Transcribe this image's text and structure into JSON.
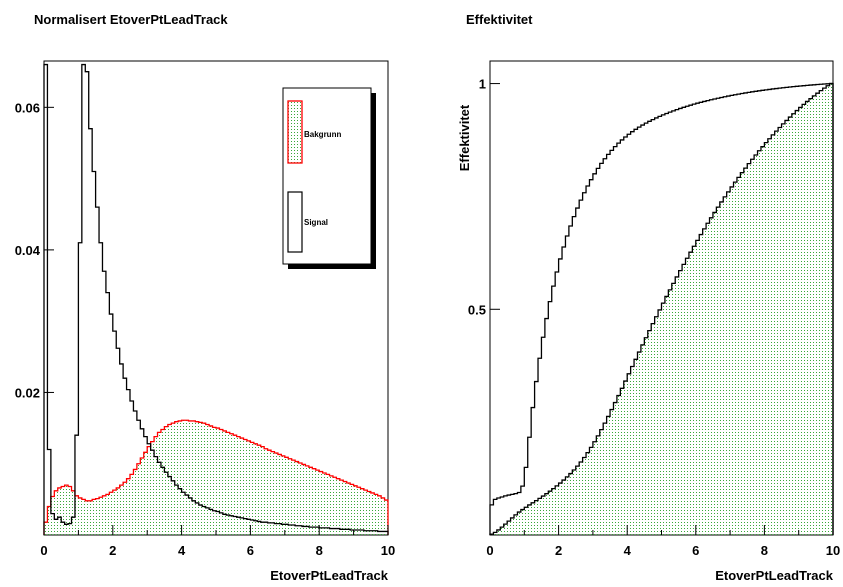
{
  "chart_data": [
    {
      "type": "histogram",
      "title": "Normalisert EtoverPtLeadTrack",
      "xlabel": "EtoverPtLeadTrack",
      "ylabel": "",
      "xlim": [
        0,
        10
      ],
      "ylim": [
        0,
        0.0665
      ],
      "x_ticks": [
        0,
        2,
        4,
        6,
        8,
        10
      ],
      "y_ticks": [
        0.02,
        0.04,
        0.06
      ],
      "y_tick_labels": [
        "0.02",
        "0.04",
        "0.06"
      ],
      "legend_position": "top-right",
      "bin_width": 0.1,
      "series": [
        {
          "name": "Bakgrunn",
          "color": "#ff0000",
          "fill": "green-dots",
          "values": [
            0.0018,
            0.004,
            0.0054,
            0.0062,
            0.0066,
            0.0068,
            0.007,
            0.0068,
            0.0062,
            0.0055,
            0.0052,
            0.005,
            0.0048,
            0.0048,
            0.005,
            0.0051,
            0.0053,
            0.0055,
            0.0057,
            0.006,
            0.0063,
            0.0066,
            0.007,
            0.0074,
            0.0079,
            0.0085,
            0.0092,
            0.01,
            0.0108,
            0.0116,
            0.0124,
            0.0131,
            0.0138,
            0.0144,
            0.0148,
            0.0152,
            0.0155,
            0.0157,
            0.0159,
            0.016,
            0.0161,
            0.0161,
            0.016,
            0.016,
            0.0159,
            0.0158,
            0.0157,
            0.0155,
            0.0153,
            0.0151,
            0.015,
            0.0148,
            0.0146,
            0.0144,
            0.0142,
            0.014,
            0.0138,
            0.0136,
            0.0134,
            0.0132,
            0.013,
            0.0128,
            0.0126,
            0.0124,
            0.0121,
            0.0119,
            0.0117,
            0.0115,
            0.0113,
            0.0111,
            0.0109,
            0.0107,
            0.0105,
            0.0103,
            0.0101,
            0.0099,
            0.0097,
            0.0095,
            0.0093,
            0.0091,
            0.0089,
            0.0087,
            0.0085,
            0.0083,
            0.0081,
            0.0079,
            0.0077,
            0.0075,
            0.0073,
            0.0071,
            0.0069,
            0.0067,
            0.0065,
            0.0063,
            0.0061,
            0.0059,
            0.0057,
            0.0055,
            0.0052,
            0.0049
          ]
        },
        {
          "name": "Signal",
          "color": "#000000",
          "fill": "none",
          "values": [
            0.066,
            0.012,
            0.003,
            0.0022,
            0.0025,
            0.0018,
            0.0015,
            0.0016,
            0.0025,
            0.014,
            0.041,
            0.066,
            0.065,
            0.057,
            0.051,
            0.046,
            0.041,
            0.037,
            0.034,
            0.031,
            0.0286,
            0.0262,
            0.024,
            0.022,
            0.0204,
            0.0188,
            0.0174,
            0.0161,
            0.0149,
            0.0138,
            0.0128,
            0.0119,
            0.011,
            0.0102,
            0.0095,
            0.0088,
            0.0082,
            0.0076,
            0.007,
            0.0065,
            0.006,
            0.0056,
            0.0052,
            0.0048,
            0.0045,
            0.0042,
            0.004,
            0.0038,
            0.0036,
            0.0034,
            0.0033,
            0.0031,
            0.0029,
            0.0028,
            0.0027,
            0.0026,
            0.0025,
            0.0024,
            0.0023,
            0.0022,
            0.0021,
            0.002,
            0.0019,
            0.0018,
            0.0018,
            0.0017,
            0.0017,
            0.0016,
            0.0016,
            0.0015,
            0.0015,
            0.0014,
            0.0014,
            0.0013,
            0.0013,
            0.0012,
            0.0012,
            0.0011,
            0.0011,
            0.0011,
            0.001,
            0.001,
            0.001,
            0.0009,
            0.0009,
            0.0009,
            0.0008,
            0.0008,
            0.0008,
            0.0007,
            0.0007,
            0.0007,
            0.0007,
            0.0006,
            0.0006,
            0.0006,
            0.0006,
            0.0005,
            0.0005,
            0.0005
          ]
        }
      ]
    },
    {
      "type": "histogram",
      "title": "Effektivitet",
      "xlabel": "EtoverPtLeadTrack",
      "ylabel": "Effektivitet",
      "xlim": [
        0,
        10
      ],
      "ylim": [
        0,
        1.05
      ],
      "x_ticks": [
        0,
        2,
        4,
        6,
        8,
        10
      ],
      "y_ticks": [
        0.5,
        1
      ],
      "y_tick_labels": [
        "0.5",
        "1"
      ],
      "bin_width": 0.1,
      "series": [
        {
          "name": "Bakgrunn",
          "color": "#000000",
          "fill": "green-dots",
          "derived_from": "cumulative of Bakgrunn"
        },
        {
          "name": "Signal",
          "color": "#000000",
          "fill": "none",
          "derived_from": "cumulative of Signal"
        }
      ]
    }
  ],
  "legend": {
    "items": [
      {
        "label": "Bakgrunn",
        "border": "#ff0000"
      },
      {
        "label": "Signal",
        "border": "#000000"
      }
    ]
  }
}
